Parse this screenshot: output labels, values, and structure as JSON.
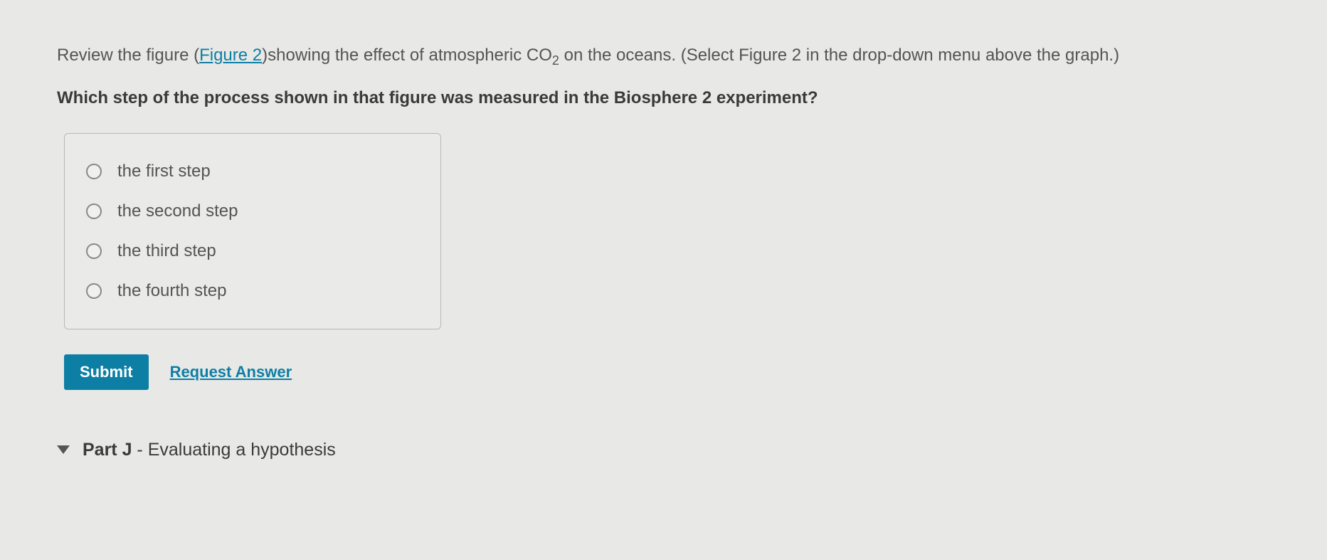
{
  "question": {
    "intro_before_link": "Review the figure (",
    "figure_link": "Figure 2",
    "intro_after_link": ")showing the effect of atmospheric CO",
    "subscript": "2",
    "intro_end": " on the oceans. (Select Figure 2 in the drop-down menu above the graph.)",
    "main_question": "Which step of the process shown in that figure was measured in the Biosphere 2 experiment?"
  },
  "options": [
    {
      "label": "the first step"
    },
    {
      "label": "the second step"
    },
    {
      "label": "the third step"
    },
    {
      "label": "the fourth step"
    }
  ],
  "actions": {
    "submit": "Submit",
    "request": "Request Answer"
  },
  "part": {
    "label": "Part J",
    "separator": " - ",
    "title": "Evaluating a hypothesis"
  },
  "colors": {
    "link": "#0d7fa5",
    "submit_bg": "#0d7fa5",
    "text": "#545454",
    "bold_text": "#3a3a3a",
    "background": "#e8e8e6"
  }
}
